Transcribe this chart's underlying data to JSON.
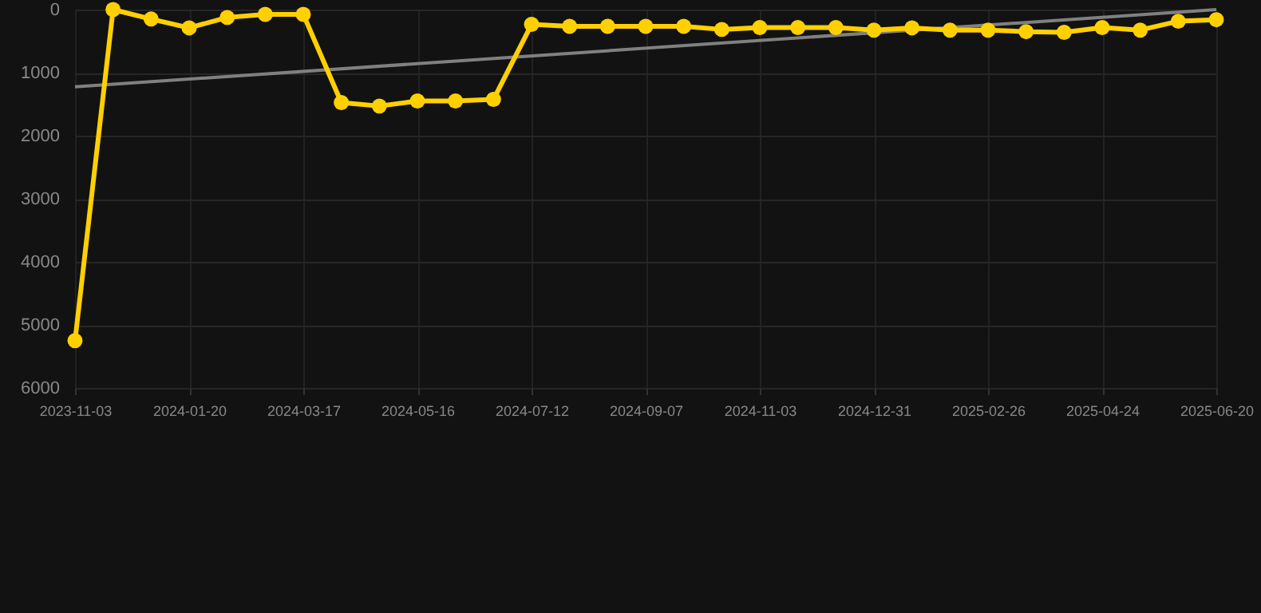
{
  "chart_data": {
    "type": "line",
    "categories": [
      "2023-11-03",
      null,
      null,
      "2024-01-20",
      null,
      null,
      "2024-03-17",
      null,
      null,
      "2024-05-16",
      null,
      null,
      "2024-07-12",
      null,
      null,
      "2024-09-07",
      null,
      null,
      "2024-11-03",
      null,
      null,
      "2024-12-31",
      null,
      null,
      "2025-02-26",
      null,
      null,
      "2025-04-24",
      null,
      null,
      "2025-06-20"
    ],
    "series": [
      {
        "color": "#ffd000",
        "marker": "circle",
        "values": [
          5250,
          0,
          150,
          290,
          125,
          75,
          75,
          1475,
          1530,
          1450,
          1450,
          1425,
          235,
          265,
          265,
          265,
          265,
          315,
          285,
          285,
          285,
          325,
          290,
          325,
          325,
          350,
          360,
          285,
          325,
          185,
          160
        ]
      },
      {
        "color": "#808080",
        "marker": "none",
        "values": [
          1225,
          null,
          null,
          null,
          null,
          null,
          null,
          null,
          null,
          null,
          null,
          null,
          null,
          null,
          null,
          null,
          null,
          null,
          null,
          null,
          null,
          null,
          null,
          null,
          null,
          null,
          null,
          null,
          null,
          null,
          0
        ]
      }
    ],
    "ylim": [
      6000,
      0
    ],
    "yticks": [
      0,
      1000,
      2000,
      3000,
      4000,
      5000,
      6000
    ],
    "grid": true
  }
}
